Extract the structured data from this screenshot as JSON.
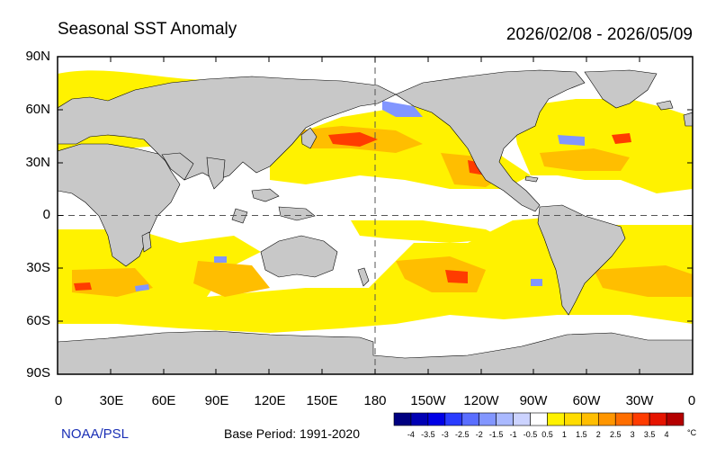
{
  "header": {
    "title": "Seasonal SST Anomaly",
    "date_range": "2026/02/08 - 2026/05/09"
  },
  "axes": {
    "lat_labels": [
      "90N",
      "60N",
      "30N",
      "0",
      "30S",
      "60S",
      "90S"
    ],
    "lon_labels": [
      "0",
      "30E",
      "60E",
      "90E",
      "120E",
      "150E",
      "180",
      "150W",
      "120W",
      "90W",
      "60W",
      "30W",
      "0"
    ]
  },
  "footer": {
    "credit": "NOAA/PSL",
    "base_period": "Base Period: 1991-2020"
  },
  "colorbar": {
    "labels": [
      "-4",
      "-3.5",
      "-3",
      "-2.5",
      "-2",
      "-1.5",
      "-1",
      "-0.5",
      "0.5",
      "1",
      "1.5",
      "2",
      "2.5",
      "3",
      "3.5",
      "4"
    ],
    "unit": "°C",
    "colors": [
      "#000080",
      "#0000b4",
      "#0000e6",
      "#2a3cff",
      "#5a6eff",
      "#8296ff",
      "#aab9ff",
      "#ccd3ff",
      "#ffffff",
      "#fff200",
      "#ffdc00",
      "#ffbe00",
      "#ff9600",
      "#ff6e00",
      "#ff3c00",
      "#e61400",
      "#b40000"
    ]
  },
  "chart_data": {
    "type": "heatmap",
    "variable": "SST anomaly",
    "unit": "°C",
    "lat_range": [
      -90,
      90
    ],
    "lon_range": [
      0,
      360
    ],
    "color_levels": [
      -4,
      -3.5,
      -3,
      -2.5,
      -2,
      -1.5,
      -1,
      -0.5,
      0.5,
      1,
      1.5,
      2,
      2.5,
      3,
      3.5,
      4
    ]
  }
}
